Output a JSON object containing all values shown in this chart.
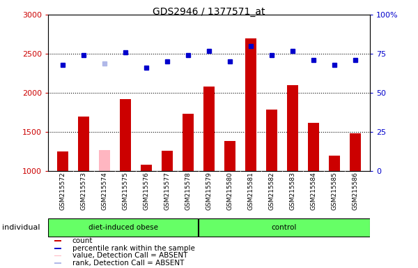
{
  "title": "GDS2946 / 1377571_at",
  "samples": [
    "GSM215572",
    "GSM215573",
    "GSM215574",
    "GSM215575",
    "GSM215576",
    "GSM215577",
    "GSM215578",
    "GSM215579",
    "GSM215580",
    "GSM215581",
    "GSM215582",
    "GSM215583",
    "GSM215584",
    "GSM215585",
    "GSM215586"
  ],
  "counts": [
    1250,
    1700,
    1270,
    1920,
    1080,
    1260,
    1730,
    2080,
    1380,
    2700,
    1790,
    2100,
    1620,
    1200,
    1480
  ],
  "absent_mask": [
    false,
    false,
    true,
    false,
    false,
    false,
    false,
    false,
    false,
    false,
    false,
    false,
    false,
    false,
    false
  ],
  "percentile_ranks": [
    68,
    74,
    69,
    76,
    66,
    70,
    74,
    77,
    70,
    80,
    74,
    77,
    71,
    68,
    71
  ],
  "rank_absent_mask": [
    false,
    false,
    true,
    false,
    false,
    false,
    false,
    false,
    false,
    false,
    false,
    false,
    false,
    false,
    false
  ],
  "group1_count": 7,
  "group2_count": 8,
  "group1_label": "diet-induced obese",
  "group2_label": "control",
  "group_color": "#66ff66",
  "bar_color_present": "#cc0000",
  "bar_color_absent": "#ffb6c1",
  "dot_color_present": "#0000cc",
  "dot_color_absent": "#b0b8e8",
  "ylim_left": [
    1000,
    3000
  ],
  "ylim_right": [
    0,
    100
  ],
  "yticks_left": [
    1000,
    1500,
    2000,
    2500,
    3000
  ],
  "yticks_right": [
    0,
    25,
    50,
    75,
    100
  ],
  "ytick_labels_right": [
    "0",
    "25",
    "50",
    "75",
    "100%"
  ],
  "xticklabel_bg": "#cccccc",
  "plot_bg": "#ffffff",
  "individual_label": "individual",
  "legend_items": [
    {
      "label": "count",
      "color": "#cc0000"
    },
    {
      "label": "percentile rank within the sample",
      "color": "#0000cc"
    },
    {
      "label": "value, Detection Call = ABSENT",
      "color": "#ffb6c1"
    },
    {
      "label": "rank, Detection Call = ABSENT",
      "color": "#b0b8e8"
    }
  ]
}
